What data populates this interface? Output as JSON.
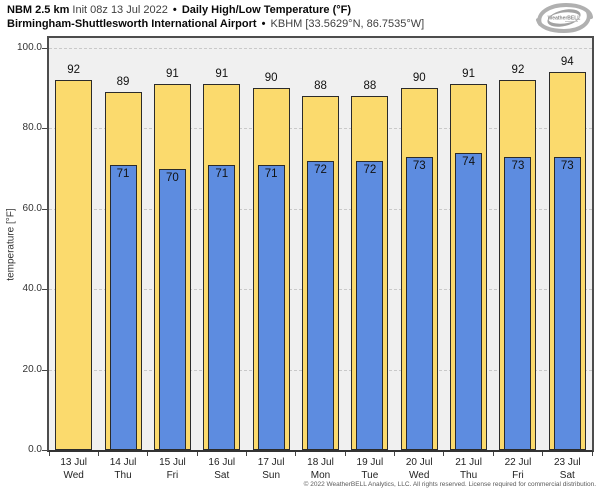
{
  "header": {
    "model": "NBM 2.5 km",
    "init": "Init 08z 13 Jul 2022",
    "separator": "•",
    "product": "Daily High/Low Temperature (°F)",
    "station": "Birmingham-Shuttlesworth International Airport",
    "station_meta": "KBHM [33.5629°N, 86.7535°W]"
  },
  "logo": {
    "text": "WeatherBELL"
  },
  "chart_data": {
    "type": "bar",
    "title": "Daily High/Low Temperature (°F)",
    "categories": [
      {
        "date": "13 Jul",
        "day": "Wed"
      },
      {
        "date": "14 Jul",
        "day": "Thu"
      },
      {
        "date": "15 Jul",
        "day": "Fri"
      },
      {
        "date": "16 Jul",
        "day": "Sat"
      },
      {
        "date": "17 Jul",
        "day": "Sun"
      },
      {
        "date": "18 Jul",
        "day": "Mon"
      },
      {
        "date": "19 Jul",
        "day": "Tue"
      },
      {
        "date": "20 Jul",
        "day": "Wed"
      },
      {
        "date": "21 Jul",
        "day": "Thu"
      },
      {
        "date": "22 Jul",
        "day": "Fri"
      },
      {
        "date": "23 Jul",
        "day": "Sat"
      }
    ],
    "series": [
      {
        "name": "Daily High",
        "color": "#fbda6d",
        "values": [
          92,
          89,
          91,
          91,
          90,
          88,
          88,
          90,
          91,
          92,
          94
        ]
      },
      {
        "name": "Daily Low",
        "color": "#5d8ce0",
        "values": [
          null,
          71,
          70,
          71,
          71,
          72,
          72,
          73,
          74,
          73,
          73
        ]
      }
    ],
    "ylabel": "temperature [°F]",
    "ylim": [
      0,
      100
    ],
    "yticks": [
      0,
      20,
      40,
      60,
      80,
      100
    ],
    "ytick_labels": [
      "0.0",
      "20.0",
      "40.0",
      "60.0",
      "80.0",
      "100.0"
    ],
    "grid": "horizontal-dash-dot",
    "legend": "none",
    "bar_value_labels": true,
    "plot_background": "#f0f0f0",
    "bar_border_color": "#2b2b2b"
  },
  "footer": {
    "copyright": "© 2022 WeatherBELL Analytics, LLC. All rights reserved. License required for commercial distribution."
  }
}
